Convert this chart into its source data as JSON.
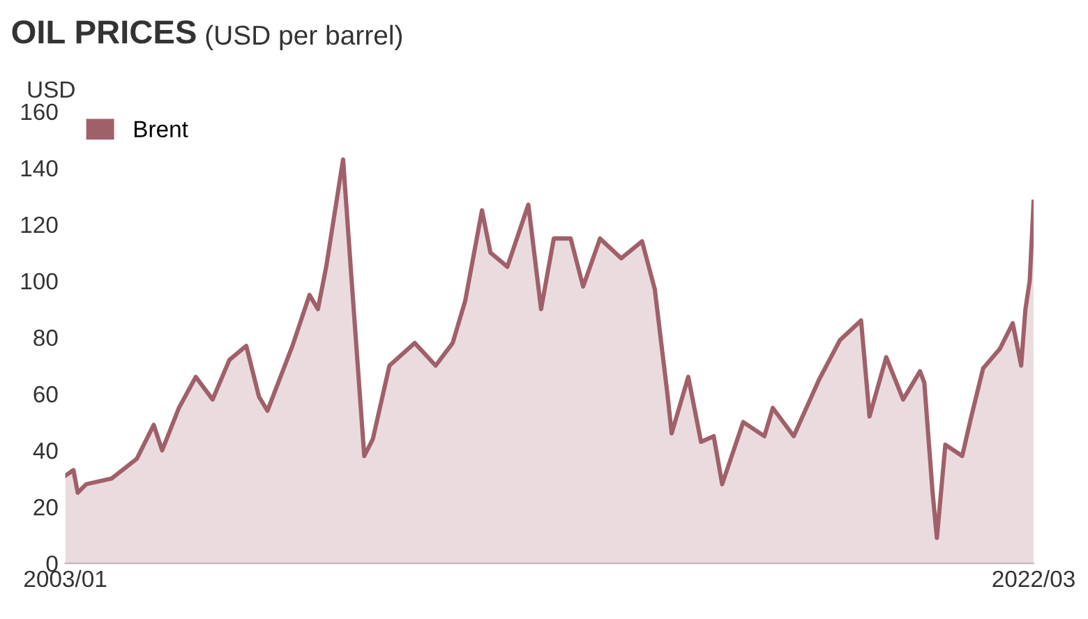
{
  "chart_data": {
    "type": "area",
    "title": "OIL PRICES",
    "subtitle": "(USD per barrel)",
    "ylabel": "USD",
    "x": [
      "2003-01",
      "2003-03",
      "2003-04",
      "2003-06",
      "2003-12",
      "2004-06",
      "2004-10",
      "2004-12",
      "2005-04",
      "2005-08",
      "2005-12",
      "2006-04",
      "2006-08",
      "2006-11",
      "2007-01",
      "2007-07",
      "2007-11",
      "2008-01",
      "2008-03",
      "2008-07",
      "2008-09",
      "2008-12",
      "2009-02",
      "2009-06",
      "2009-12",
      "2010-05",
      "2010-09",
      "2010-12",
      "2011-04",
      "2011-06",
      "2011-10",
      "2012-03",
      "2012-06",
      "2012-09",
      "2013-01",
      "2013-04",
      "2013-08",
      "2014-01",
      "2014-06",
      "2014-09",
      "2014-12",
      "2015-01",
      "2015-05",
      "2015-08",
      "2015-11",
      "2016-01",
      "2016-06",
      "2016-11",
      "2017-01",
      "2017-06",
      "2017-12",
      "2018-05",
      "2018-10",
      "2018-12",
      "2019-04",
      "2019-08",
      "2019-12",
      "2020-01",
      "2020-03",
      "2020-04",
      "2020-06",
      "2020-10",
      "2020-12",
      "2021-03",
      "2021-07",
      "2021-10",
      "2021-12",
      "2022-01",
      "2022-02",
      "2022-03"
    ],
    "series": [
      {
        "name": "Brent",
        "color": "#a0606a",
        "values": [
          31,
          33,
          25,
          28,
          30,
          37,
          49,
          40,
          55,
          66,
          58,
          72,
          77,
          59,
          54,
          77,
          95,
          90,
          105,
          143,
          100,
          38,
          44,
          70,
          78,
          70,
          78,
          93,
          125,
          110,
          105,
          127,
          90,
          115,
          115,
          98,
          115,
          108,
          114,
          97,
          60,
          46,
          66,
          43,
          45,
          28,
          50,
          45,
          55,
          45,
          65,
          79,
          86,
          52,
          73,
          58,
          68,
          64,
          25,
          9,
          42,
          38,
          51,
          69,
          76,
          85,
          70,
          90,
          100,
          128
        ]
      }
    ],
    "xlim": [
      "2003-01",
      "2022-03"
    ],
    "xticks": [
      {
        "value": "2003-01",
        "label": "2003/01"
      },
      {
        "value": "2022-03",
        "label": "2022/03"
      }
    ],
    "ylim": [
      0,
      160
    ],
    "yticks": [
      0,
      20,
      40,
      60,
      80,
      100,
      120,
      140,
      160
    ],
    "legend": "top left",
    "grid": false
  }
}
